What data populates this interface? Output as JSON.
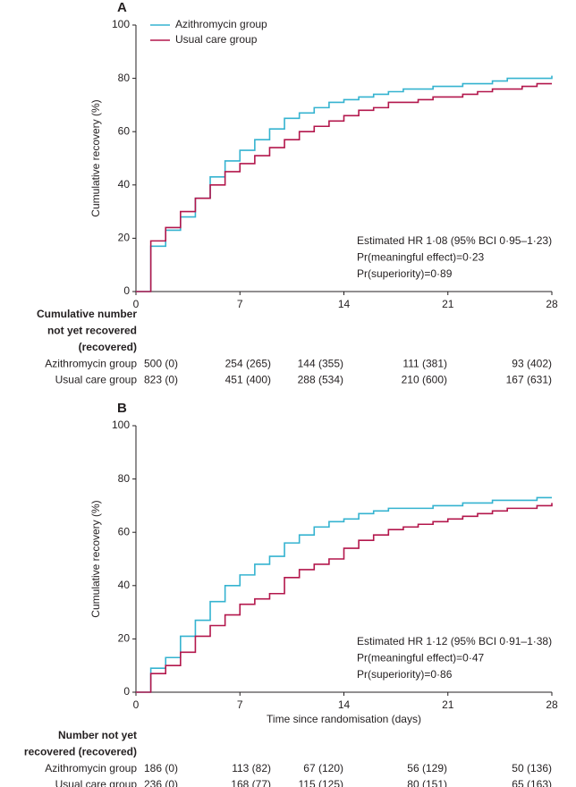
{
  "chart_data": [
    {
      "type": "step",
      "label": "A",
      "ylabel": "Cumulative recovery (%)",
      "x": [
        0,
        1,
        2,
        3,
        4,
        5,
        6,
        7,
        8,
        9,
        10,
        11,
        12,
        13,
        14,
        15,
        16,
        17,
        18,
        19,
        20,
        21,
        22,
        23,
        24,
        25,
        26,
        27,
        28
      ],
      "series": [
        {
          "name": "Azithromycin group",
          "color": "#35b3d0",
          "values": [
            0,
            17,
            23,
            28,
            35,
            43,
            49,
            53,
            57,
            61,
            65,
            67,
            69,
            71,
            72,
            73,
            74,
            75,
            76,
            76,
            77,
            77,
            78,
            78,
            79,
            80,
            80,
            80,
            81
          ]
        },
        {
          "name": "Usual care group",
          "color": "#b3174c",
          "values": [
            0,
            19,
            24,
            30,
            35,
            40,
            45,
            48,
            51,
            54,
            57,
            60,
            62,
            64,
            66,
            68,
            69,
            71,
            71,
            72,
            73,
            73,
            74,
            75,
            76,
            76,
            77,
            78,
            78
          ]
        }
      ],
      "xlim": [
        0,
        28
      ],
      "xticks": [
        0,
        7,
        14,
        21,
        28
      ],
      "ylim": [
        0,
        100
      ],
      "yticks": [
        0,
        20,
        40,
        60,
        80,
        100
      ],
      "legend": true,
      "annotations": [
        "Estimated HR 1·08 (95% BCI 0·95–1·23)",
        "Pr(meaningful effect)=0·23",
        "Pr(superiority)=0·89"
      ],
      "risk_table": {
        "title": [
          "Cumulative number",
          "not yet recovered",
          "(recovered)"
        ],
        "rows": [
          {
            "name": "Azithromycin group",
            "values": [
              "500 (0)",
              "254 (265)",
              "144 (355)",
              "111 (381)",
              "93 (402)"
            ]
          },
          {
            "name": "Usual care group",
            "values": [
              "823 (0)",
              "451 (400)",
              "288 (534)",
              "210 (600)",
              "167 (631)"
            ]
          }
        ]
      }
    },
    {
      "type": "step",
      "label": "B",
      "ylabel": "Cumulative recovery (%)",
      "xlabel": "Time since randomisation (days)",
      "x": [
        0,
        1,
        2,
        3,
        4,
        5,
        6,
        7,
        8,
        9,
        10,
        11,
        12,
        13,
        14,
        15,
        16,
        17,
        18,
        19,
        20,
        21,
        22,
        23,
        24,
        25,
        26,
        27,
        28
      ],
      "series": [
        {
          "name": "Azithromycin group",
          "color": "#35b3d0",
          "values": [
            0,
            9,
            13,
            21,
            27,
            34,
            40,
            44,
            48,
            51,
            56,
            59,
            62,
            64,
            65,
            67,
            68,
            69,
            69,
            69,
            70,
            70,
            71,
            71,
            72,
            72,
            72,
            73,
            73
          ]
        },
        {
          "name": "Usual care group",
          "color": "#b3174c",
          "values": [
            0,
            7,
            10,
            15,
            21,
            25,
            29,
            33,
            35,
            37,
            43,
            46,
            48,
            50,
            54,
            57,
            59,
            61,
            62,
            63,
            64,
            65,
            66,
            67,
            68,
            69,
            69,
            70,
            71
          ]
        }
      ],
      "xlim": [
        0,
        28
      ],
      "xticks": [
        0,
        7,
        14,
        21,
        28
      ],
      "ylim": [
        0,
        100
      ],
      "yticks": [
        0,
        20,
        40,
        60,
        80,
        100
      ],
      "legend": false,
      "annotations": [
        "Estimated HR 1·12 (95% BCI 0·91–1·38)",
        "Pr(meaningful effect)=0·47",
        "Pr(superiority)=0·86"
      ],
      "risk_table": {
        "title": [
          "Number not yet",
          "recovered (recovered)"
        ],
        "rows": [
          {
            "name": "Azithromycin group",
            "values": [
              "186 (0)",
              "113 (82)",
              "67 (120)",
              "56 (129)",
              "50 (136)"
            ]
          },
          {
            "name": "Usual care group",
            "values": [
              "236 (0)",
              "168 (77)",
              "115 (125)",
              "80 (151)",
              "65 (163)"
            ]
          }
        ]
      }
    }
  ]
}
